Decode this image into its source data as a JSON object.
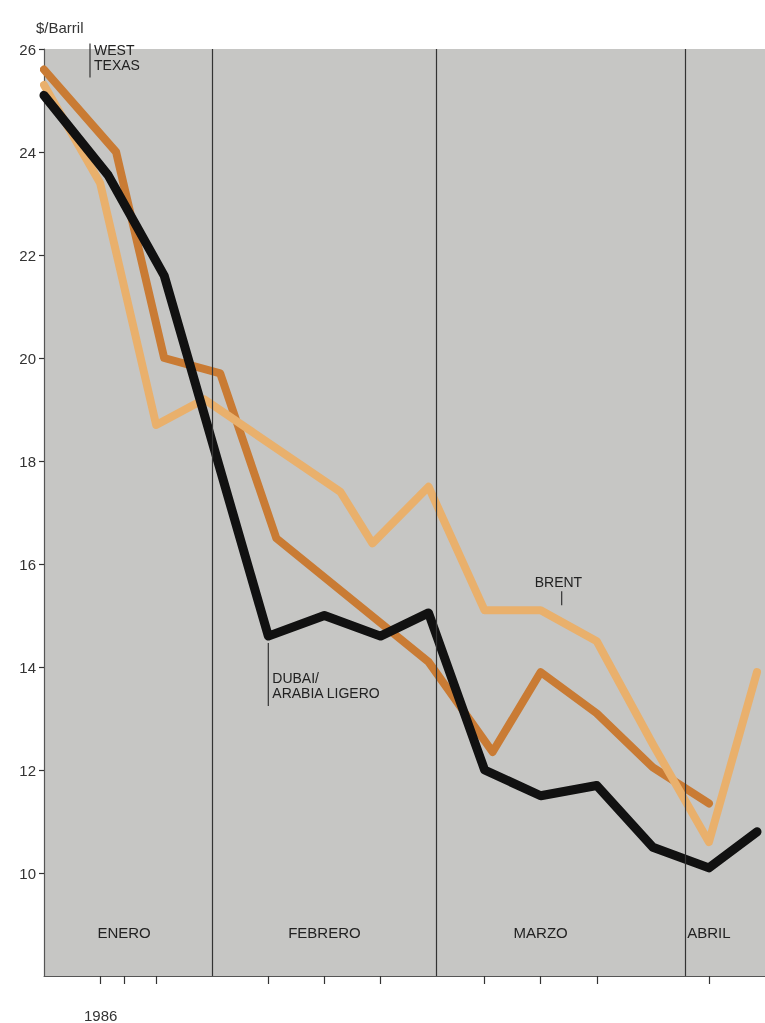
{
  "chart_data": {
    "type": "line",
    "ylabel": "$/Barril",
    "xlabel": "1986",
    "xlim": [
      "1986-01-11",
      "1986-04-11"
    ],
    "ylim": [
      8,
      26
    ],
    "xticks": [
      {
        "value": "1986-01-18",
        "label": null
      },
      {
        "value": "1986-01-21",
        "label": "ENERO"
      },
      {
        "value": "1986-01-25",
        "label": null
      },
      {
        "value": "1986-02-08",
        "label": null
      },
      {
        "value": "1986-02-15",
        "label": "FEBRERO"
      },
      {
        "value": "1986-02-22",
        "label": null
      },
      {
        "value": "1986-03-07",
        "label": null
      },
      {
        "value": "1986-03-14",
        "label": "MARZO"
      },
      {
        "value": "1986-03-21",
        "label": null
      },
      {
        "value": "1986-04-04",
        "label": "ABRIL"
      }
    ],
    "yticks": [
      10,
      12,
      14,
      16,
      18,
      20,
      22,
      24,
      26
    ],
    "grid": false,
    "legend": false,
    "marker": "none",
    "ref_lines": [
      {
        "axis": "x",
        "value": "1986-02-01",
        "label": null,
        "color": "#333333"
      },
      {
        "axis": "x",
        "value": "1986-03-01",
        "label": null,
        "color": "#333333"
      },
      {
        "axis": "x",
        "value": "1986-04-01",
        "label": null,
        "color": "#333333"
      }
    ],
    "series": [
      {
        "name": "WEST\nTEXAS",
        "color": "#c97b34",
        "x": [
          "1986-01-11",
          "1986-01-20",
          "1986-01-26",
          "1986-02-02",
          "1986-02-09",
          "1986-02-28",
          "1986-03-08",
          "1986-03-14",
          "1986-03-21",
          "1986-03-28",
          "1986-04-04"
        ],
        "values": [
          25.6,
          24.0,
          20.0,
          19.7,
          16.5,
          14.1,
          12.35,
          13.9,
          13.1,
          12.05,
          11.35
        ]
      },
      {
        "name": "BRENT",
        "color": "#e9b06c",
        "x": [
          "1986-01-11",
          "1986-01-18",
          "1986-01-25",
          "1986-01-31",
          "1986-02-17",
          "1986-02-21",
          "1986-02-28",
          "1986-03-07",
          "1986-03-14",
          "1986-03-21",
          "1986-03-28",
          "1986-04-04",
          "1986-04-10"
        ],
        "values": [
          25.3,
          23.4,
          18.7,
          19.2,
          17.4,
          16.4,
          17.5,
          15.1,
          15.1,
          14.5,
          12.5,
          10.6,
          13.9
        ]
      },
      {
        "name": "DUBAI/\nARABIA LIGERO",
        "color": "#111111",
        "x": [
          "1986-01-11",
          "1986-01-19",
          "1986-01-26",
          "1986-02-08",
          "1986-02-15",
          "1986-02-22",
          "1986-02-28",
          "1986-03-07",
          "1986-03-14",
          "1986-03-21",
          "1986-03-28",
          "1986-04-04",
          "1986-04-10"
        ],
        "values": [
          25.1,
          23.55,
          21.6,
          14.6,
          15.0,
          14.6,
          15.05,
          12.0,
          11.5,
          11.7,
          10.5,
          10.1,
          10.8
        ]
      }
    ]
  }
}
